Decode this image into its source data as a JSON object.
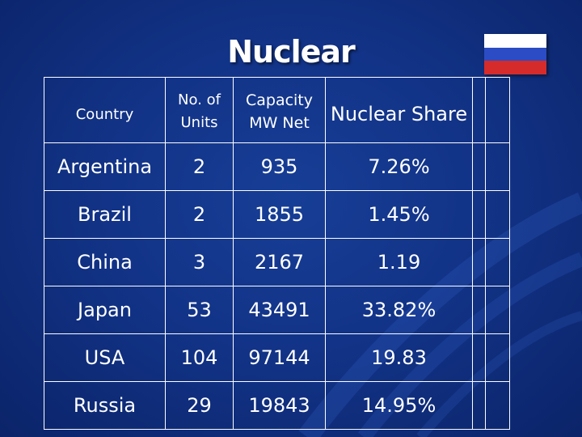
{
  "slide": {
    "title": "Nuclear",
    "flag_colors": [
      "#ffffff",
      "#2b4cc4",
      "#d52b2b"
    ]
  },
  "table": {
    "headers": {
      "country": "Country",
      "units_line1": "No. of",
      "units_line2": "Units",
      "capacity_line1": "Capacity",
      "capacity_line2": "MW Net",
      "share": "Nuclear Share"
    },
    "rows": [
      {
        "country": "Argentina",
        "units": "2",
        "capacity": "935",
        "share": "7.26%"
      },
      {
        "country": "Brazil",
        "units": "2",
        "capacity": "1855",
        "share": "1.45%"
      },
      {
        "country": "China",
        "units": "3",
        "capacity": "2167",
        "share": "1.19"
      },
      {
        "country": "Japan",
        "units": "53",
        "capacity": "43491",
        "share": "33.82%"
      },
      {
        "country": "USA",
        "units": "104",
        "capacity": "97144",
        "share": "19.83"
      },
      {
        "country": "Russia",
        "units": "29",
        "capacity": "19843",
        "share": "14.95%"
      }
    ]
  }
}
